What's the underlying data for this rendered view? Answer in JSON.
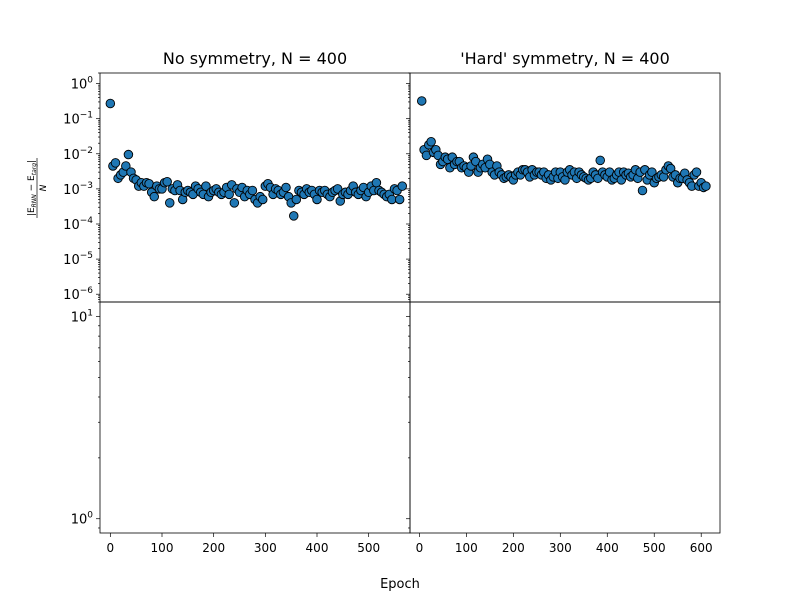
{
  "figure": {
    "xlabel": "Epoch",
    "ylabel_top": "|E_RNN − E_targ| / N",
    "ylabel_num": "|E",
    "ylabel_num_sub1": "RNN",
    "ylabel_num_mid": " − E",
    "ylabel_num_sub2": "targ",
    "ylabel_num_end": "|",
    "ylabel_den": "N"
  },
  "chart_data": [
    {
      "type": "scatter",
      "panel": "top-left",
      "title": "No symmetry, N = 400",
      "xlim": [
        -20,
        580
      ],
      "ylim": [
        6e-07,
        2
      ],
      "yscale": "log",
      "xticks": [
        0,
        100,
        200,
        300,
        400,
        500
      ],
      "xtick_labels": [
        "0",
        "100",
        "200",
        "300",
        "400",
        "500"
      ],
      "ytick_labels": [
        {
          "base": "10",
          "exp": "0",
          "value": 1
        },
        {
          "base": "10",
          "exp": "−1",
          "value": 0.1
        },
        {
          "base": "10",
          "exp": "−2",
          "value": 0.01
        },
        {
          "base": "10",
          "exp": "−3",
          "value": 0.001
        },
        {
          "base": "10",
          "exp": "−4",
          "value": 0.0001
        },
        {
          "base": "10",
          "exp": "−5",
          "value": 1e-05
        },
        {
          "base": "10",
          "exp": "−6",
          "value": 1e-06
        }
      ],
      "marker_color": "#1f77b4",
      "x": [
        0,
        5,
        10,
        15,
        20,
        25,
        30,
        35,
        40,
        45,
        50,
        55,
        60,
        65,
        70,
        75,
        80,
        85,
        90,
        95,
        100,
        105,
        110,
        115,
        120,
        125,
        130,
        135,
        140,
        145,
        150,
        155,
        160,
        165,
        170,
        175,
        180,
        185,
        190,
        195,
        200,
        205,
        210,
        215,
        220,
        225,
        230,
        235,
        240,
        245,
        250,
        255,
        260,
        265,
        270,
        275,
        280,
        285,
        290,
        295,
        300,
        305,
        310,
        315,
        320,
        325,
        330,
        335,
        340,
        345,
        350,
        355,
        360,
        365,
        370,
        375,
        380,
        385,
        390,
        395,
        400,
        405,
        410,
        415,
        420,
        425,
        430,
        435,
        440,
        445,
        450,
        455,
        460,
        465,
        470,
        475,
        480,
        485,
        490,
        495,
        500,
        505,
        510,
        515,
        520,
        525,
        530,
        535,
        540,
        545,
        550,
        555,
        560,
        565
      ],
      "y": [
        0.27,
        0.0045,
        0.0055,
        0.002,
        0.0025,
        0.003,
        0.0045,
        0.0095,
        0.003,
        0.002,
        0.0018,
        0.0012,
        0.0015,
        0.0012,
        0.0015,
        0.0014,
        0.0008,
        0.0006,
        0.0012,
        0.001,
        0.001,
        0.0015,
        0.0016,
        0.0004,
        0.001,
        0.0009,
        0.0013,
        0.0009,
        0.0005,
        0.0008,
        0.0009,
        0.0008,
        0.0007,
        0.0012,
        0.001,
        0.0008,
        0.0007,
        0.0012,
        0.0006,
        0.0008,
        0.0009,
        0.001,
        0.0008,
        0.0007,
        0.0008,
        0.0011,
        0.0007,
        0.0013,
        0.0004,
        0.001,
        0.0008,
        0.0011,
        0.0006,
        0.0009,
        0.0007,
        0.0009,
        0.0005,
        0.0004,
        0.0006,
        0.0005,
        0.0012,
        0.0014,
        0.0011,
        0.0007,
        0.001,
        0.0009,
        0.0007,
        0.0008,
        0.0011,
        0.0006,
        0.0004,
        0.00017,
        0.0005,
        0.0009,
        0.0008,
        0.0007,
        0.001,
        0.0008,
        0.0009,
        0.0007,
        0.0005,
        0.0009,
        0.0008,
        0.0009,
        0.0007,
        0.0006,
        0.0008,
        0.0009,
        0.001,
        0.00045,
        0.0007,
        0.0008,
        0.0007,
        0.0009,
        0.0012,
        0.0008,
        0.0007,
        0.0009,
        0.0011,
        0.0006,
        0.0008,
        0.0012,
        0.0009,
        0.0015,
        0.0009,
        0.0008,
        0.0007,
        0.0006,
        0.0007,
        0.0005,
        0.001,
        0.0009,
        0.0005,
        0.0012
      ]
    },
    {
      "type": "scatter",
      "panel": "top-right",
      "title": "'Hard' symmetry, N = 400",
      "xlim": [
        -20,
        640
      ],
      "ylim": [
        6e-07,
        2
      ],
      "yscale": "log",
      "marker_color": "#1f77b4",
      "x": [
        5,
        10,
        15,
        20,
        25,
        30,
        35,
        40,
        45,
        50,
        55,
        60,
        65,
        70,
        75,
        80,
        85,
        90,
        95,
        100,
        105,
        110,
        115,
        120,
        125,
        130,
        135,
        140,
        145,
        150,
        155,
        160,
        165,
        170,
        175,
        180,
        185,
        190,
        195,
        200,
        205,
        210,
        215,
        220,
        225,
        230,
        235,
        240,
        245,
        250,
        255,
        260,
        265,
        270,
        275,
        280,
        285,
        290,
        295,
        300,
        305,
        310,
        315,
        320,
        325,
        330,
        335,
        340,
        345,
        350,
        355,
        360,
        365,
        370,
        375,
        380,
        385,
        390,
        395,
        400,
        405,
        410,
        415,
        420,
        425,
        430,
        435,
        440,
        445,
        450,
        455,
        460,
        465,
        470,
        475,
        480,
        485,
        490,
        495,
        500,
        505,
        510,
        515,
        520,
        525,
        530,
        535,
        540,
        545,
        550,
        555,
        560,
        565,
        570,
        575,
        580,
        585,
        590,
        595,
        600,
        605,
        610
      ],
      "y": [
        0.32,
        0.013,
        0.009,
        0.018,
        0.022,
        0.011,
        0.013,
        0.009,
        0.005,
        0.006,
        0.008,
        0.007,
        0.004,
        0.008,
        0.005,
        0.006,
        0.006,
        0.004,
        0.0045,
        0.004,
        0.003,
        0.0045,
        0.008,
        0.006,
        0.003,
        0.004,
        0.005,
        0.004,
        0.007,
        0.005,
        0.003,
        0.0025,
        0.0045,
        0.003,
        0.0025,
        0.002,
        0.0022,
        0.0025,
        0.0022,
        0.0018,
        0.0025,
        0.003,
        0.0025,
        0.0035,
        0.0035,
        0.003,
        0.0022,
        0.0035,
        0.0025,
        0.003,
        0.003,
        0.0025,
        0.003,
        0.002,
        0.0025,
        0.0018,
        0.0022,
        0.003,
        0.002,
        0.003,
        0.0022,
        0.0018,
        0.003,
        0.0035,
        0.0025,
        0.003,
        0.002,
        0.003,
        0.0025,
        0.0022,
        0.002,
        0.0018,
        0.002,
        0.003,
        0.0025,
        0.002,
        0.0065,
        0.003,
        0.0025,
        0.0022,
        0.003,
        0.0018,
        0.002,
        0.0025,
        0.003,
        0.0018,
        0.003,
        0.0025,
        0.0028,
        0.0022,
        0.0025,
        0.0035,
        0.002,
        0.003,
        0.0009,
        0.0035,
        0.0018,
        0.0025,
        0.003,
        0.0015,
        0.002,
        0.0022,
        0.0025,
        0.0022,
        0.0035,
        0.0045,
        0.0038,
        0.0022,
        0.0025,
        0.0015,
        0.002,
        0.002,
        0.0028,
        0.0018,
        0.0015,
        0.0012,
        0.0025,
        0.003,
        0.0012,
        0.0015,
        0.0011,
        0.0012
      ]
    },
    {
      "type": "scatter",
      "panel": "bottom-left",
      "title": "",
      "xlim": [
        -20,
        580
      ],
      "ylim": [
        0.85,
        11.8
      ],
      "yscale": "log",
      "xticks": [
        0,
        100,
        200,
        300,
        400,
        500
      ],
      "xtick_labels": [
        "0",
        "100",
        "200",
        "300",
        "400",
        "500"
      ],
      "ytick_labels": [
        {
          "base": "10",
          "exp": "1",
          "value": 10
        },
        {
          "base": "10",
          "exp": "0",
          "value": 1
        }
      ],
      "x": [],
      "y": []
    },
    {
      "type": "scatter",
      "panel": "bottom-right",
      "title": "",
      "xlim": [
        -20,
        640
      ],
      "ylim": [
        0.85,
        11.8
      ],
      "yscale": "log",
      "xticks": [
        0,
        100,
        200,
        300,
        400,
        500,
        600
      ],
      "xtick_labels": [
        "0",
        "100",
        "200",
        "300",
        "400",
        "500",
        "600"
      ],
      "x": [],
      "y": []
    }
  ]
}
